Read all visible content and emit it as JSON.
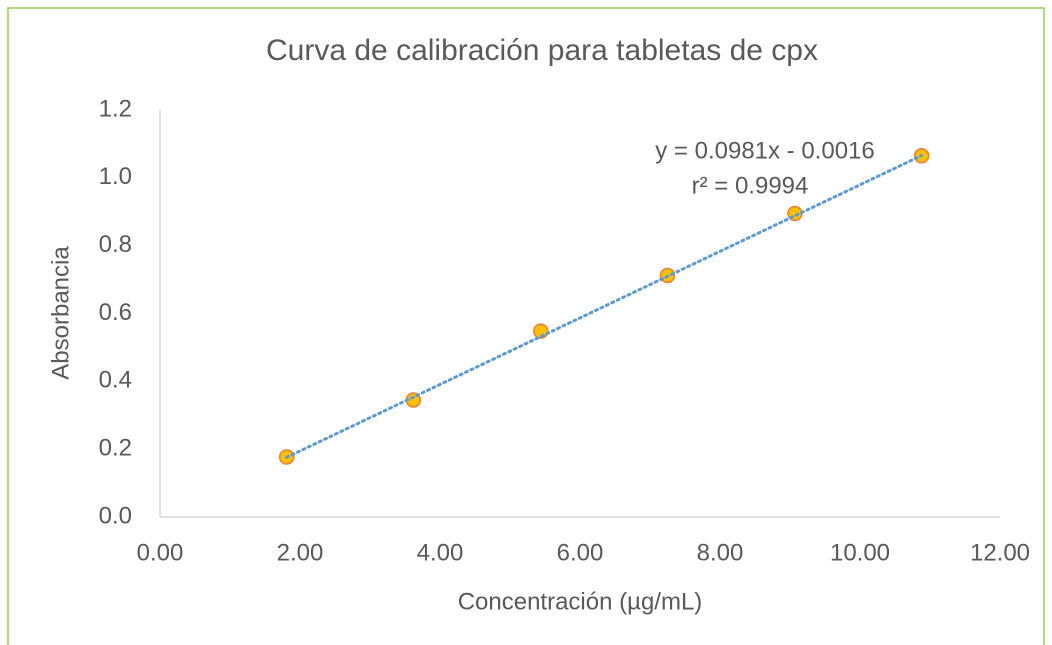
{
  "chart_data": {
    "type": "scatter",
    "title": "Curva de calibración para tabletas de cpx",
    "xlabel": "Concentración (µg/mL)",
    "ylabel": "Absorbancia",
    "series": [
      {
        "name": "Absorbancia",
        "color": "#ffc000",
        "edge": "#ed7d31",
        "x": [
          1.81,
          3.62,
          5.44,
          7.25,
          9.07,
          10.88
        ],
        "values": [
          0.177,
          0.345,
          0.548,
          0.712,
          0.895,
          1.065
        ]
      }
    ],
    "trendline": {
      "equation": "y = 0.0981x - 0.0016",
      "r2_label": "r² = 0.9994",
      "slope": 0.0981,
      "intercept": -0.0016,
      "color": "#5b9bd5"
    },
    "xlim": [
      0,
      12
    ],
    "xticks": [
      {
        "value": 0,
        "label": "0.00"
      },
      {
        "value": 2,
        "label": "2.00"
      },
      {
        "value": 4,
        "label": "4.00"
      },
      {
        "value": 6,
        "label": "6.00"
      },
      {
        "value": 8,
        "label": "8.00"
      },
      {
        "value": 10,
        "label": "10.00"
      },
      {
        "value": 12,
        "label": "12.00"
      }
    ],
    "ylim": [
      0,
      1.2
    ],
    "yticks": [
      {
        "value": 0,
        "label": "0.0"
      },
      0.2,
      0.4,
      0.6,
      0.8,
      {
        "value": 1,
        "label": "1.0"
      },
      1.2
    ],
    "grid": false
  }
}
